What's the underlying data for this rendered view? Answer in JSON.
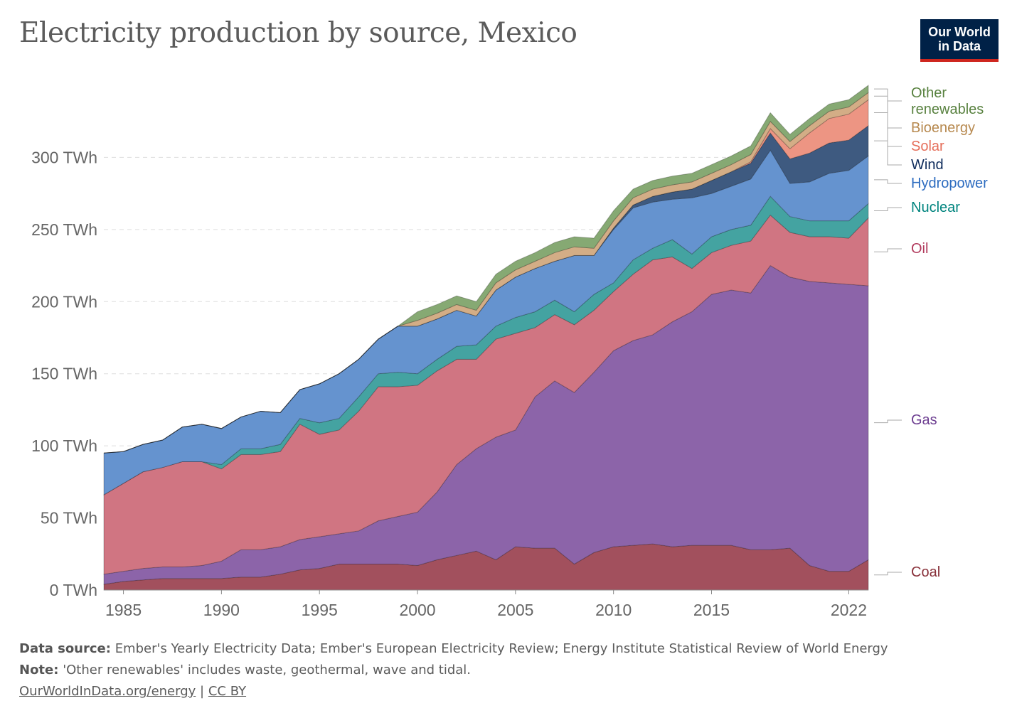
{
  "header": {
    "title": "Electricity production by source, Mexico",
    "logo_line1": "Our World",
    "logo_line2": "in Data"
  },
  "footer": {
    "source_label": "Data source:",
    "source_text": "Ember's Yearly Electricity Data; Ember's European Electricity Review; Energy Institute Statistical Review of World Energy",
    "note_label": "Note:",
    "note_text": "'Other renewables' includes waste, geothermal, wave and tidal.",
    "link_text": "OurWorldInData.org/energy",
    "separator": "|",
    "license_text": "CC BY"
  },
  "chart_data": {
    "type": "area",
    "stacked": true,
    "title": "Electricity production by source, Mexico",
    "xlabel": "",
    "ylabel": "",
    "xlim": [
      1984,
      2023
    ],
    "ylim": [
      0,
      350
    ],
    "y_unit": "TWh",
    "grid": "horizontal dashed",
    "legend": "right, inline labels",
    "x_ticks": [
      "1985",
      "1990",
      "1995",
      "2000",
      "2005",
      "2010",
      "2015",
      "2022"
    ],
    "x_tick_values": [
      1985,
      1990,
      1995,
      2000,
      2005,
      2010,
      2015,
      2022
    ],
    "y_ticks": [
      "0 TWh",
      "50 TWh",
      "100 TWh",
      "150 TWh",
      "200 TWh",
      "250 TWh",
      "300 TWh"
    ],
    "y_tick_values": [
      0,
      50,
      100,
      150,
      200,
      250,
      300
    ],
    "x": [
      1984,
      1985,
      1986,
      1987,
      1988,
      1989,
      1990,
      1991,
      1992,
      1993,
      1994,
      1995,
      1996,
      1997,
      1998,
      1999,
      2000,
      2001,
      2002,
      2003,
      2004,
      2005,
      2006,
      2007,
      2008,
      2009,
      2010,
      2011,
      2012,
      2013,
      2014,
      2015,
      2016,
      2017,
      2018,
      2019,
      2020,
      2021,
      2022,
      2023
    ],
    "series": [
      {
        "name": "Coal",
        "color": "#a2505d",
        "label_color": "#883039",
        "values": [
          4,
          6,
          7,
          8,
          8,
          8,
          8,
          9,
          9,
          11,
          14,
          15,
          18,
          18,
          18,
          18,
          17,
          21,
          24,
          27,
          21,
          30,
          29,
          29,
          18,
          26,
          30,
          31,
          32,
          30,
          31,
          31,
          31,
          28,
          28,
          29,
          17,
          13,
          13,
          21
        ]
      },
      {
        "name": "Gas",
        "color": "#8c64a9",
        "label_color": "#6d3e91",
        "values": [
          7,
          7,
          8,
          8,
          8,
          9,
          12,
          19,
          19,
          19,
          21,
          22,
          21,
          23,
          30,
          33,
          37,
          47,
          63,
          71,
          85,
          81,
          105,
          116,
          119,
          125,
          136,
          142,
          145,
          156,
          162,
          174,
          177,
          178,
          197,
          188,
          197,
          200,
          199,
          190
        ]
      },
      {
        "name": "Oil",
        "color": "#d07582",
        "label_color": "#b13a5c",
        "values": [
          55,
          61,
          67,
          69,
          73,
          72,
          64,
          66,
          66,
          66,
          80,
          71,
          72,
          83,
          93,
          90,
          88,
          84,
          73,
          62,
          68,
          67,
          48,
          46,
          47,
          43,
          41,
          46,
          52,
          45,
          30,
          29,
          31,
          36,
          35,
          31,
          31,
          32,
          32,
          47
        ]
      },
      {
        "name": "Nuclear",
        "color": "#44a3a1",
        "label_color": "#00847e",
        "values": [
          0,
          0,
          0,
          0,
          0,
          0,
          3,
          4,
          4,
          5,
          4,
          8,
          8,
          10,
          9,
          10,
          8,
          8,
          9,
          10,
          9,
          11,
          11,
          10,
          9,
          11,
          6,
          10,
          8,
          12,
          10,
          11,
          11,
          11,
          13,
          11,
          11,
          11,
          12,
          10
        ]
      },
      {
        "name": "Hydropower",
        "color": "#6593cf",
        "label_color": "#2d6cc0",
        "values": [
          29,
          22,
          19,
          19,
          24,
          26,
          25,
          22,
          26,
          22,
          20,
          27,
          31,
          26,
          24,
          32,
          33,
          28,
          25,
          20,
          25,
          28,
          30,
          27,
          39,
          27,
          37,
          36,
          32,
          28,
          39,
          30,
          30,
          32,
          32,
          23,
          27,
          33,
          35,
          33
        ]
      },
      {
        "name": "Wind",
        "color": "#3e5a80",
        "label_color": "#0e2b5b",
        "values": [
          0,
          0,
          0,
          0,
          0,
          0,
          0,
          0,
          0,
          0,
          0,
          0,
          0,
          0,
          0,
          0,
          0,
          0,
          0,
          0,
          0,
          0,
          0,
          0,
          0,
          0,
          1,
          2,
          4,
          5,
          6,
          9,
          10,
          11,
          12,
          17,
          20,
          21,
          21,
          21
        ]
      },
      {
        "name": "Solar",
        "color": "#ed9583",
        "label_color": "#e56e5a",
        "values": [
          0,
          0,
          0,
          0,
          0,
          0,
          0,
          0,
          0,
          0,
          0,
          0,
          0,
          0,
          0,
          0,
          0,
          0,
          0,
          0,
          0,
          0,
          0,
          0,
          0,
          0,
          0,
          0,
          0,
          0,
          0,
          0,
          0,
          1,
          3,
          7,
          14,
          17,
          18,
          18
        ]
      },
      {
        "name": "Bioenergy",
        "color": "#d3ad86",
        "label_color": "#b7894f",
        "values": [
          0,
          0,
          0,
          0,
          0,
          0,
          0,
          0,
          0,
          0,
          0,
          0,
          0,
          0,
          0,
          0,
          4,
          4,
          4,
          4,
          5,
          5,
          5,
          6,
          6,
          5,
          5,
          5,
          5,
          5,
          5,
          5,
          5,
          5,
          5,
          5,
          5,
          5,
          5,
          5
        ]
      },
      {
        "name": "Other renewables",
        "label_line1": "Other",
        "label_line2": "renewables",
        "color": "#86a973",
        "label_color": "#58813f",
        "values": [
          0,
          0,
          0,
          0,
          0,
          0,
          0,
          0,
          0,
          0,
          0,
          0,
          0,
          0,
          0,
          0,
          6,
          6,
          6,
          6,
          6,
          6,
          6,
          7,
          7,
          7,
          7,
          6,
          6,
          6,
          6,
          6,
          6,
          6,
          6,
          5,
          5,
          5,
          5,
          5
        ]
      }
    ]
  }
}
